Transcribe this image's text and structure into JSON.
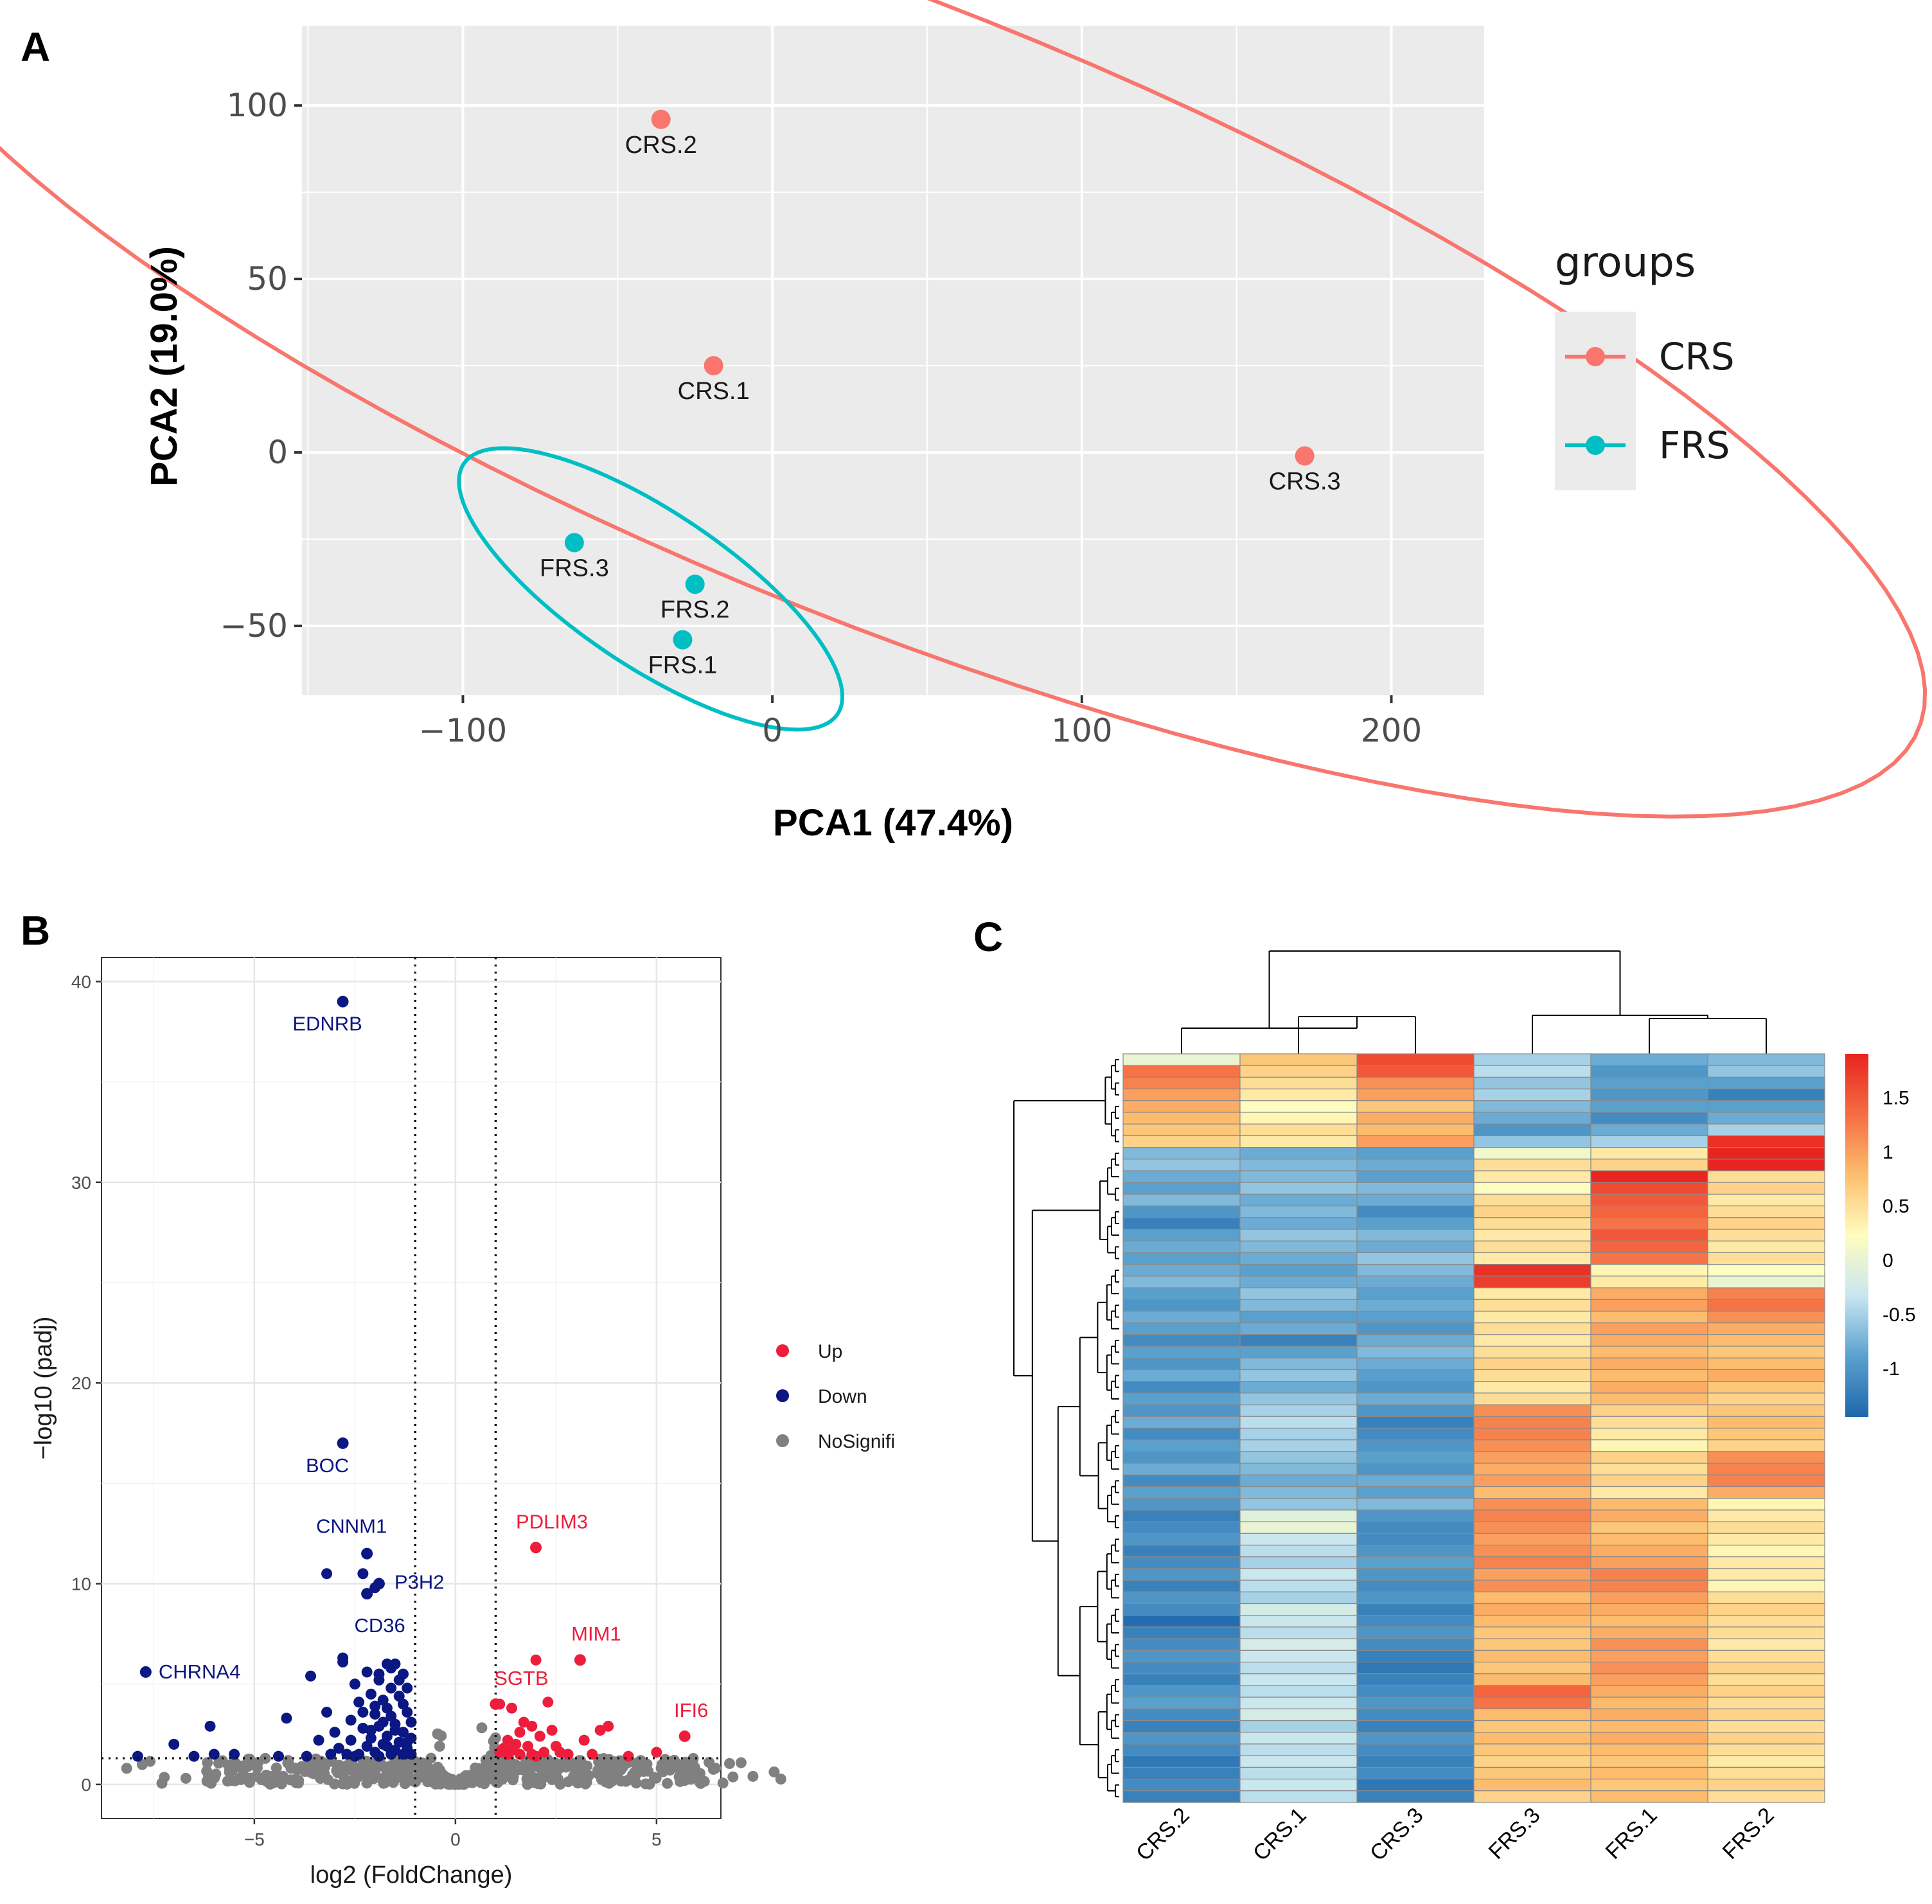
{
  "panels": {
    "a": {
      "letter": "A"
    },
    "b": {
      "letter": "B"
    },
    "c": {
      "letter": "C"
    }
  },
  "chart_data": [
    {
      "panel": "A",
      "type": "scatter",
      "xlabel": "PCA1 (47.4%)",
      "ylabel": "PCA2 (19.0%)",
      "xlim": [
        -152,
        230
      ],
      "ylim": [
        -70,
        123
      ],
      "xticks": [
        -100,
        0,
        100,
        200
      ],
      "xtick_labels": [
        "−100",
        "0",
        "100",
        "200"
      ],
      "yticks": [
        -50,
        0,
        50,
        100
      ],
      "ytick_labels": [
        "−50",
        "0",
        "50",
        "100"
      ],
      "grid": true,
      "legend_title": "groups",
      "series": [
        {
          "name": "CRS",
          "color": "#F8766D",
          "points": [
            {
              "label": "CRS.2",
              "x": -36,
              "y": 96
            },
            {
              "label": "CRS.1",
              "x": -19,
              "y": 25
            },
            {
              "label": "CRS.3",
              "x": 172,
              "y": -1
            }
          ]
        },
        {
          "name": "FRS",
          "color": "#00BFC4",
          "points": [
            {
              "label": "FRS.3",
              "x": -64,
              "y": -26
            },
            {
              "label": "FRS.2",
              "x": -25,
              "y": -38
            },
            {
              "label": "FRS.1",
              "x": -29,
              "y": -54
            }
          ]
        }
      ]
    },
    {
      "panel": "B",
      "type": "scatter",
      "xlabel": "log2 (FoldChange)",
      "ylabel": "−log10 (padj)",
      "xlim": [
        -8.8,
        6.6
      ],
      "ylim": [
        -1.7,
        41.2
      ],
      "xticks": [
        -5,
        0,
        5
      ],
      "xtick_labels": [
        "−5",
        "0",
        "5"
      ],
      "yticks": [
        0,
        10,
        20,
        30,
        40
      ],
      "ytick_labels": [
        "0",
        "10",
        "20",
        "30",
        "40"
      ],
      "thresholds": {
        "x": [
          -1,
          1
        ],
        "y": 1.3
      },
      "grid": true,
      "legend": [
        {
          "name": "Up",
          "color": "#EE1D3C"
        },
        {
          "name": "Down",
          "color": "#0B1782"
        },
        {
          "name": "NoSignifi",
          "color": "#808080"
        }
      ],
      "labeled_genes": [
        {
          "gene": "EDNRB",
          "x": -2.8,
          "y": 39.0,
          "group": "Down"
        },
        {
          "gene": "BOC",
          "x": -2.8,
          "y": 17.0,
          "group": "Down"
        },
        {
          "gene": "CNNM1",
          "x": -2.2,
          "y": 11.5,
          "group": "Down"
        },
        {
          "gene": "P3H2",
          "x": -1.9,
          "y": 10.0,
          "group": "Down"
        },
        {
          "gene": "CD36",
          "x": -2.2,
          "y": 9.5,
          "group": "Down"
        },
        {
          "gene": "CHRNA4",
          "x": -7.7,
          "y": 5.6,
          "group": "Down"
        },
        {
          "gene": "PDLIM3",
          "x": 2.0,
          "y": 11.8,
          "group": "Up"
        },
        {
          "gene": "MIM1",
          "x": 3.1,
          "y": 6.2,
          "group": "Up"
        },
        {
          "gene": "SGTB",
          "x": 1.0,
          "y": 4.0,
          "group": "Up"
        },
        {
          "gene": "IFI6",
          "x": 5.7,
          "y": 2.4,
          "group": "Up"
        }
      ],
      "down_points": [
        [
          -2.3,
          10.5
        ],
        [
          -3.2,
          10.5
        ],
        [
          -2.0,
          9.8
        ],
        [
          -2.8,
          6.3
        ],
        [
          -2.8,
          6.1
        ],
        [
          -3.6,
          5.4
        ],
        [
          -1.7,
          6.0
        ],
        [
          -1.5,
          6.0
        ],
        [
          -2.2,
          5.6
        ],
        [
          -1.9,
          5.5
        ],
        [
          -1.4,
          5.2
        ],
        [
          -1.6,
          4.8
        ],
        [
          -2.1,
          4.5
        ],
        [
          -2.4,
          4.1
        ],
        [
          -1.8,
          4.2
        ],
        [
          -1.3,
          4.0
        ],
        [
          -3.2,
          3.6
        ],
        [
          -4.2,
          3.3
        ],
        [
          -2.6,
          3.2
        ],
        [
          -2.0,
          3.5
        ],
        [
          -1.6,
          3.4
        ],
        [
          -1.2,
          3.6
        ],
        [
          -1.5,
          3.0
        ],
        [
          -1.9,
          2.9
        ],
        [
          -2.3,
          2.8
        ],
        [
          -3.0,
          2.6
        ],
        [
          -6.1,
          2.9
        ],
        [
          -1.3,
          2.6
        ],
        [
          -1.7,
          2.4
        ],
        [
          -2.1,
          2.3
        ],
        [
          -2.6,
          2.2
        ],
        [
          -3.4,
          2.2
        ],
        [
          -1.1,
          2.3
        ],
        [
          -1.4,
          2.1
        ],
        [
          -1.8,
          2.0
        ],
        [
          -2.2,
          1.9
        ],
        [
          -2.9,
          1.8
        ],
        [
          -7.0,
          2.0
        ],
        [
          -1.2,
          1.8
        ],
        [
          -1.5,
          1.7
        ],
        [
          -2.0,
          1.6
        ],
        [
          -2.4,
          1.5
        ],
        [
          -3.1,
          1.5
        ],
        [
          -5.5,
          1.5
        ],
        [
          -6.5,
          1.4
        ],
        [
          -1.1,
          1.5
        ],
        [
          -1.6,
          1.5
        ],
        [
          -2.7,
          1.5
        ],
        [
          -4.4,
          1.4
        ],
        [
          -7.9,
          1.4
        ],
        [
          -1.3,
          1.5
        ],
        [
          -1.9,
          1.4
        ],
        [
          -2.5,
          1.4
        ],
        [
          -3.7,
          1.4
        ],
        [
          -6.0,
          1.5
        ],
        [
          -1.2,
          4.8
        ],
        [
          -1.4,
          4.4
        ],
        [
          -1.7,
          3.8
        ],
        [
          -2.0,
          3.9
        ],
        [
          -1.1,
          3.1
        ],
        [
          -1.5,
          2.7
        ],
        [
          -1.8,
          3.1
        ],
        [
          -2.3,
          3.6
        ],
        [
          -1.3,
          5.5
        ],
        [
          -1.6,
          5.8
        ],
        [
          -1.9,
          5.2
        ],
        [
          -2.5,
          5.0
        ],
        [
          -1.2,
          2.1
        ],
        [
          -1.7,
          1.9
        ],
        [
          -2.1,
          2.7
        ]
      ],
      "up_points": [
        [
          2.0,
          6.2
        ],
        [
          3.1,
          6.2
        ],
        [
          1.1,
          4.0
        ],
        [
          1.4,
          3.8
        ],
        [
          2.3,
          4.1
        ],
        [
          1.7,
          3.1
        ],
        [
          1.9,
          2.9
        ],
        [
          2.4,
          2.7
        ],
        [
          1.6,
          2.6
        ],
        [
          3.6,
          2.7
        ],
        [
          3.8,
          2.9
        ],
        [
          2.1,
          2.4
        ],
        [
          1.3,
          2.2
        ],
        [
          1.5,
          2.0
        ],
        [
          1.8,
          1.9
        ],
        [
          2.5,
          1.9
        ],
        [
          3.2,
          2.2
        ],
        [
          1.2,
          1.8
        ],
        [
          1.4,
          1.7
        ],
        [
          2.2,
          1.6
        ],
        [
          2.6,
          1.6
        ],
        [
          1.1,
          1.6
        ],
        [
          1.6,
          1.5
        ],
        [
          1.9,
          1.5
        ],
        [
          4.3,
          1.4
        ],
        [
          5.0,
          1.6
        ],
        [
          2.8,
          1.5
        ],
        [
          3.4,
          1.5
        ],
        [
          1.3,
          1.5
        ],
        [
          2.0,
          1.4
        ]
      ]
    },
    {
      "panel": "C",
      "type": "heatmap",
      "columns": [
        "CRS.2",
        "CRS.1",
        "CRS.3",
        "FRS.3",
        "FRS.1",
        "FRS.2"
      ],
      "color_scale": {
        "min": -1.45,
        "max": 1.9,
        "ticks": [
          1.5,
          1,
          0.5,
          0,
          -0.5,
          -1
        ],
        "tick_labels": [
          "1.5",
          "1",
          "0.5",
          "0",
          "-0.5",
          "-1"
        ],
        "stops": [
          "#1F67AC",
          "#5AA1CE",
          "#C8E6F1",
          "#FFFDBF",
          "#FDBE6E",
          "#F46D43",
          "#E8241F"
        ]
      },
      "values": [
        [
          0.0,
          0.7,
          1.6,
          -0.5,
          -0.8,
          -0.7
        ],
        [
          1.3,
          0.6,
          1.5,
          -0.4,
          -1.0,
          -0.6
        ],
        [
          1.2,
          0.5,
          1.1,
          -0.6,
          -0.9,
          -0.9
        ],
        [
          1.0,
          0.4,
          1.0,
          -0.5,
          -1.0,
          -1.2
        ],
        [
          0.9,
          0.2,
          0.7,
          -0.7,
          -0.9,
          -0.9
        ],
        [
          0.8,
          0.3,
          0.9,
          -0.8,
          -1.1,
          -0.8
        ],
        [
          0.7,
          0.5,
          0.8,
          -1.0,
          -0.8,
          -0.5
        ],
        [
          0.6,
          0.4,
          1.0,
          -0.6,
          -0.5,
          1.8
        ],
        [
          -0.7,
          -0.8,
          -0.9,
          0.1,
          0.4,
          1.9
        ],
        [
          -0.6,
          -0.7,
          -0.8,
          0.5,
          0.6,
          1.9
        ],
        [
          -0.8,
          -0.7,
          -0.9,
          0.4,
          1.9,
          0.5
        ],
        [
          -0.9,
          -0.6,
          -0.7,
          0.2,
          1.6,
          0.6
        ],
        [
          -0.7,
          -0.8,
          -0.8,
          0.5,
          1.5,
          0.4
        ],
        [
          -1.0,
          -0.7,
          -1.1,
          0.6,
          1.4,
          0.5
        ],
        [
          -1.2,
          -0.8,
          -0.9,
          0.5,
          1.3,
          0.6
        ],
        [
          -0.9,
          -0.6,
          -0.7,
          0.4,
          1.5,
          0.5
        ],
        [
          -0.8,
          -0.7,
          -0.8,
          0.5,
          1.4,
          0.4
        ],
        [
          -0.9,
          -0.8,
          -0.6,
          0.4,
          1.3,
          0.5
        ],
        [
          -0.8,
          -0.9,
          -0.7,
          1.8,
          0.3,
          0.2
        ],
        [
          -0.7,
          -0.8,
          -0.8,
          1.7,
          0.4,
          0.0
        ],
        [
          -0.9,
          -0.6,
          -0.9,
          0.4,
          0.9,
          1.2
        ],
        [
          -1.0,
          -0.7,
          -0.8,
          0.5,
          1.0,
          1.3
        ],
        [
          -0.8,
          -0.9,
          -0.9,
          0.4,
          0.8,
          1.1
        ],
        [
          -0.9,
          -0.8,
          -1.0,
          0.5,
          1.0,
          0.9
        ],
        [
          -1.1,
          -1.2,
          -0.8,
          0.4,
          0.9,
          0.8
        ],
        [
          -0.9,
          -0.9,
          -0.7,
          0.5,
          0.8,
          0.7
        ],
        [
          -1.0,
          -0.7,
          -0.8,
          0.6,
          0.9,
          0.8
        ],
        [
          -0.8,
          -0.6,
          -0.9,
          0.5,
          0.8,
          0.9
        ],
        [
          -1.1,
          -0.8,
          -1.0,
          0.4,
          0.9,
          0.7
        ],
        [
          -0.9,
          -0.6,
          -0.8,
          0.5,
          0.8,
          0.6
        ],
        [
          -1.0,
          -0.5,
          -1.0,
          1.1,
          0.6,
          0.7
        ],
        [
          -0.8,
          -0.4,
          -1.2,
          1.2,
          0.5,
          0.8
        ],
        [
          -1.1,
          -0.5,
          -1.1,
          1.2,
          0.4,
          0.7
        ],
        [
          -0.9,
          -0.5,
          -1.0,
          1.1,
          0.3,
          0.6
        ],
        [
          -1.0,
          -0.6,
          -0.9,
          1.0,
          0.6,
          1.1
        ],
        [
          -0.8,
          -0.7,
          -1.0,
          0.9,
          0.5,
          1.2
        ],
        [
          -1.1,
          -0.8,
          -0.8,
          1.0,
          0.6,
          1.2
        ],
        [
          -0.9,
          -0.7,
          -0.9,
          0.8,
          0.4,
          0.9
        ],
        [
          -1.0,
          -0.6,
          -0.7,
          1.1,
          0.8,
          0.3
        ],
        [
          -1.2,
          -0.1,
          -1.0,
          1.2,
          0.9,
          0.4
        ],
        [
          -1.1,
          0.0,
          -1.1,
          1.1,
          0.7,
          0.5
        ],
        [
          -1.0,
          -0.3,
          -1.1,
          1.0,
          0.8,
          0.4
        ],
        [
          -1.2,
          -0.4,
          -1.0,
          1.1,
          0.9,
          0.3
        ],
        [
          -1.1,
          -0.5,
          -0.9,
          1.2,
          1.0,
          0.4
        ],
        [
          -1.0,
          -0.3,
          -1.0,
          1.0,
          1.2,
          0.4
        ],
        [
          -1.2,
          -0.4,
          -1.1,
          1.1,
          1.2,
          0.3
        ],
        [
          -1.0,
          -0.5,
          -1.0,
          0.8,
          1.0,
          0.5
        ],
        [
          -1.1,
          -0.2,
          -1.2,
          0.9,
          0.9,
          0.6
        ],
        [
          -1.4,
          -0.3,
          -1.1,
          0.8,
          0.8,
          0.5
        ],
        [
          -1.2,
          -0.4,
          -1.0,
          0.7,
          0.9,
          0.5
        ],
        [
          -1.1,
          -0.2,
          -1.1,
          0.7,
          1.1,
          0.4
        ],
        [
          -1.0,
          -0.3,
          -1.2,
          0.8,
          1.0,
          0.5
        ],
        [
          -1.1,
          -0.4,
          -1.3,
          0.7,
          1.1,
          0.6
        ],
        [
          -1.2,
          -0.3,
          -1.2,
          0.8,
          1.0,
          0.5
        ],
        [
          -1.0,
          -0.4,
          -1.1,
          1.4,
          0.9,
          0.6
        ],
        [
          -0.9,
          -0.3,
          -1.0,
          1.3,
          0.8,
          0.5
        ],
        [
          -1.1,
          -0.2,
          -1.1,
          0.8,
          0.9,
          0.6
        ],
        [
          -1.2,
          -0.5,
          -1.2,
          0.7,
          0.8,
          0.5
        ],
        [
          -1.0,
          -0.3,
          -1.0,
          0.8,
          0.9,
          0.6
        ],
        [
          -1.1,
          -0.4,
          -1.1,
          0.7,
          0.8,
          0.5
        ],
        [
          -1.3,
          -0.3,
          -1.2,
          0.6,
          0.7,
          0.4
        ],
        [
          -1.2,
          -0.4,
          -1.1,
          0.7,
          0.8,
          0.5
        ],
        [
          -1.1,
          -0.3,
          -1.3,
          0.8,
          0.7,
          0.6
        ],
        [
          -1.2,
          -0.4,
          -1.2,
          0.6,
          0.8,
          0.5
        ]
      ]
    }
  ]
}
